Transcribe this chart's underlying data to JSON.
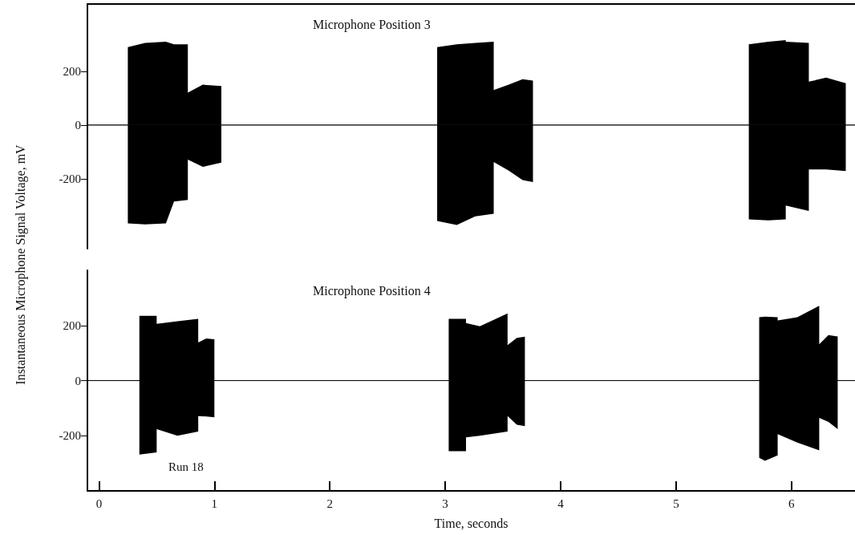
{
  "chart_data": [
    {
      "type": "line",
      "title": "Microphone Position 3",
      "ylabel": "Instantaneous Microphone Signal Voltage, mV",
      "xlim": [
        -0.1,
        6.55
      ],
      "ylim": [
        -460,
        450
      ],
      "yticks": [
        -200,
        0,
        200
      ],
      "tick_labels": "y",
      "x": [
        -0.1,
        0.25,
        0.25,
        0.4,
        0.58,
        0.65,
        0.77,
        0.77,
        0.9,
        1.06,
        1.06,
        2.93,
        2.93,
        3.1,
        3.26,
        3.42,
        3.42,
        3.55,
        3.67,
        3.76,
        3.76,
        5.63,
        5.63,
        5.8,
        5.95,
        5.95,
        6.15,
        6.15,
        6.3,
        6.47,
        6.47,
        6.55
      ],
      "series": [
        {
          "color": "#000000",
          "values": [
            0,
            0,
            0,
            0,
            0,
            0,
            0,
            0,
            0,
            0,
            0,
            0,
            0,
            0,
            0,
            0,
            0,
            0,
            0,
            0,
            0,
            0,
            0,
            0,
            0,
            0,
            0,
            0,
            0,
            0,
            0,
            0
          ],
          "upper": [
            null,
            null,
            290,
            305,
            310,
            300,
            300,
            120,
            150,
            145,
            null,
            null,
            290,
            300,
            305,
            310,
            130,
            150,
            170,
            165,
            null,
            null,
            300,
            310,
            316,
            310,
            305,
            161,
            176,
            155,
            null,
            null
          ],
          "lower": [
            null,
            null,
            -366,
            -370,
            -366,
            -285,
            -279,
            -129,
            -156,
            -140,
            null,
            null,
            -357,
            -372,
            -340,
            -330,
            -138,
            -170,
            -205,
            -212,
            null,
            null,
            -351,
            -355,
            -351,
            -300,
            -320,
            -165,
            -165,
            -171,
            null,
            null
          ]
        }
      ]
    },
    {
      "type": "line",
      "title": "Microphone Position 4",
      "xlabel": "Time, seconds",
      "annotations": [
        "Run 18"
      ],
      "xlim": [
        -0.1,
        6.55
      ],
      "ylim": [
        -400,
        400
      ],
      "yticks": [
        -200,
        0,
        200
      ],
      "xticks": [
        0,
        1,
        2,
        3,
        4,
        5,
        6
      ],
      "x": [
        -0.1,
        0.35,
        0.35,
        0.5,
        0.5,
        0.68,
        0.86,
        0.86,
        0.93,
        1.0,
        1.0,
        3.03,
        3.03,
        3.18,
        3.18,
        3.3,
        3.54,
        3.54,
        3.62,
        3.69,
        3.69,
        5.72,
        5.72,
        5.77,
        5.88,
        5.88,
        6.05,
        6.24,
        6.24,
        6.32,
        6.4,
        6.4,
        6.55
      ],
      "series": [
        {
          "color": "#000000",
          "values": [
            0,
            0,
            0,
            0,
            0,
            0,
            0,
            0,
            0,
            0,
            0,
            0,
            0,
            0,
            0,
            0,
            0,
            0,
            0,
            0,
            0,
            0,
            0,
            0,
            0,
            0,
            0,
            0,
            0,
            0,
            0,
            0,
            0
          ],
          "upper": [
            null,
            null,
            235,
            235,
            206,
            215,
            224,
            138,
            153,
            150,
            null,
            null,
            224,
            224,
            209,
            197,
            244,
            129,
            155,
            159,
            null,
            null,
            230,
            232,
            230,
            218,
            230,
            271,
            132,
            165,
            160,
            null,
            null
          ],
          "lower": [
            null,
            null,
            -268,
            -260,
            -176,
            -200,
            -185,
            -129,
            -130,
            -133,
            null,
            null,
            -256,
            -256,
            -206,
            -200,
            -185,
            -129,
            -160,
            -165,
            null,
            null,
            -280,
            -291,
            -271,
            -194,
            -225,
            -253,
            -135,
            -150,
            -176,
            null,
            null
          ]
        }
      ]
    }
  ]
}
